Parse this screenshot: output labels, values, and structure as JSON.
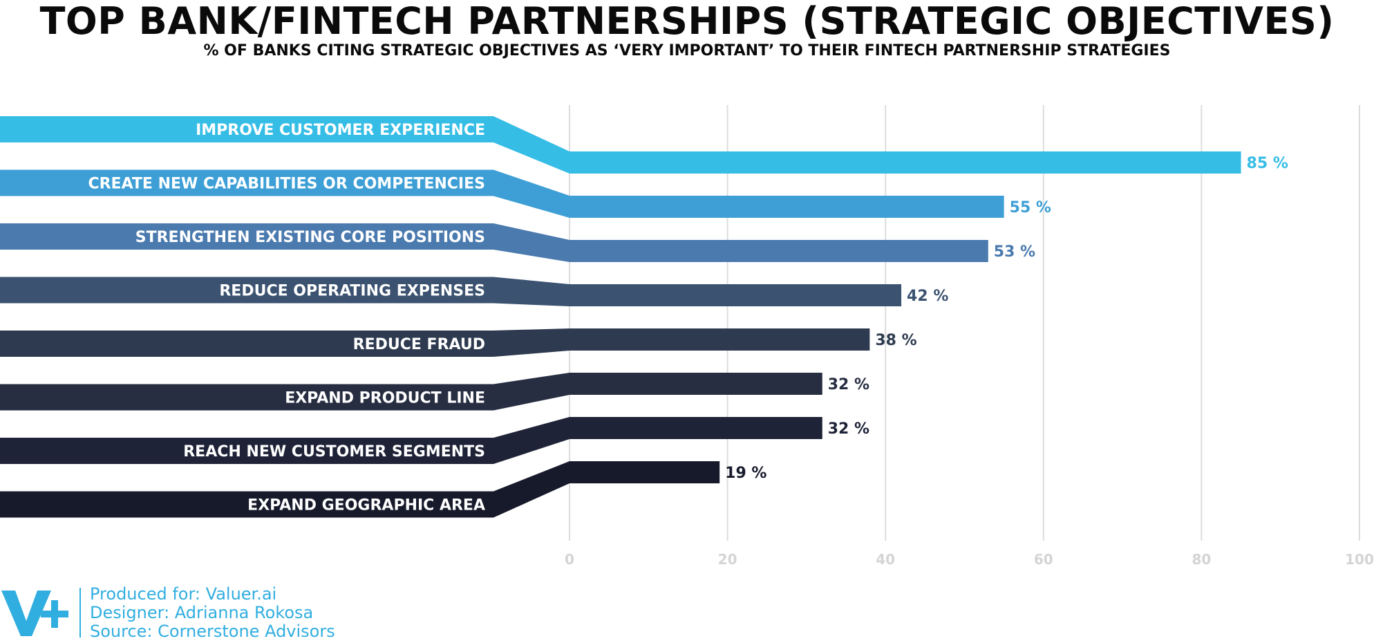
{
  "title": "TOP BANK/FINTECH PARTNERSHIPS (STRATEGIC OBJECTIVES)",
  "subtitle": "% OF BANKS CITING STRATEGIC OBJECTIVES AS ‘VERY IMPORTANT’ TO THEIR FINTECH PARTNERSHIP STRATEGIES",
  "chart_data": {
    "type": "bar",
    "orientation": "horizontal",
    "title": "TOP BANK/FINTECH PARTNERSHIPS (STRATEGIC OBJECTIVES)",
    "subtitle": "% OF BANKS CITING STRATEGIC OBJECTIVES AS ‘VERY IMPORTANT’ TO THEIR FINTECH PARTNERSHIP STRATEGIES",
    "categories": [
      "IMPROVE CUSTOMER EXPERIENCE",
      "CREATE NEW CAPABILITIES OR COMPETENCIES",
      "STRENGTHEN EXISTING CORE POSITIONS",
      "REDUCE OPERATING EXPENSES",
      "REDUCE FRAUD",
      "EXPAND PRODUCT LINE",
      "REACH NEW CUSTOMER SEGMENTS",
      "EXPAND GEOGRAPHIC AREA"
    ],
    "values": [
      85,
      55,
      53,
      42,
      38,
      32,
      32,
      19
    ],
    "value_labels": [
      "85 %",
      "55 %",
      "53 %",
      "42 %",
      "38 %",
      "32 %",
      "32 %",
      "19 %"
    ],
    "colors": [
      "#36bde5",
      "#3e9fd6",
      "#4a7aae",
      "#3b5270",
      "#2e3a4f",
      "#282e42",
      "#1f2337",
      "#171a2b"
    ],
    "xlim": [
      0,
      100
    ],
    "x_ticks": [
      "0",
      "20",
      "40",
      "60",
      "80",
      "100"
    ],
    "grid": true,
    "xlabel": "",
    "ylabel": ""
  },
  "footer": {
    "logo_text": "V+",
    "produced_for": "Produced for: Valuer.ai",
    "designer": "Designer: Adrianna Rokosa",
    "source": "Source: Cornerstone Advisors",
    "accent_color": "#31aee0"
  }
}
